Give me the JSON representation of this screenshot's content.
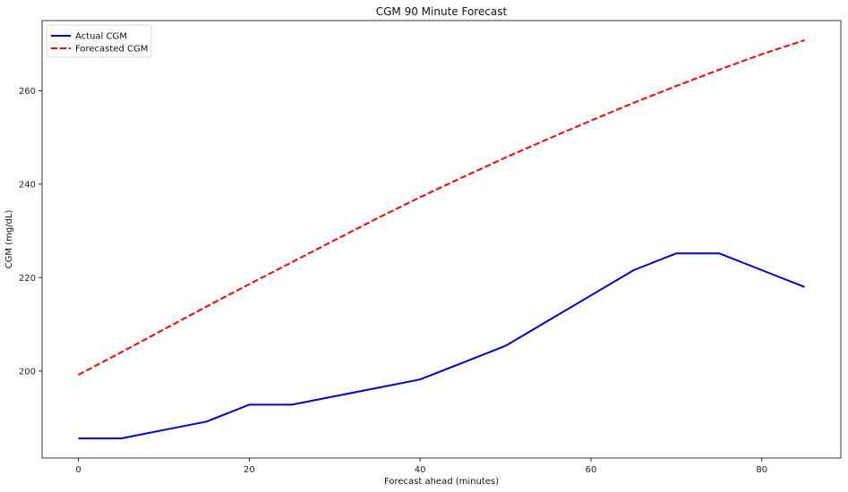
{
  "chart_data": {
    "type": "line",
    "title": "CGM 90 Minute Forecast",
    "xlabel": "Forecast ahead (minutes)",
    "ylabel": "CGM (mg/dL)",
    "xlim": [
      -4.25,
      89.25
    ],
    "ylim": [
      181.4,
      275.0
    ],
    "xticks": [
      0,
      20,
      40,
      60,
      80
    ],
    "yticks": [
      200,
      220,
      240,
      260
    ],
    "grid": false,
    "legend_position": "top-left",
    "series": [
      {
        "name": "Actual CGM",
        "color": "#0000cc",
        "style": "solid",
        "x": [
          0,
          5,
          10,
          15,
          20,
          25,
          30,
          35,
          40,
          45,
          50,
          55,
          60,
          65,
          70,
          75,
          80,
          85
        ],
        "values": [
          185.6,
          185.6,
          187.4,
          189.2,
          192.8,
          192.8,
          194.6,
          196.4,
          198.2,
          201.8,
          205.4,
          210.8,
          216.2,
          221.6,
          225.2,
          225.2,
          221.6,
          218.0
        ]
      },
      {
        "name": "Forecasted CGM",
        "color": "#ff0000",
        "style": "dashed",
        "x": [
          0,
          5,
          10,
          15,
          20,
          25,
          30,
          35,
          40,
          45,
          50,
          55,
          60,
          65,
          70,
          75,
          80,
          85
        ],
        "values": [
          199.2,
          204.0,
          208.9,
          213.8,
          218.6,
          223.3,
          228.0,
          232.7,
          237.2,
          241.5,
          245.7,
          249.7,
          253.6,
          257.4,
          261.0,
          264.5,
          267.8,
          270.8
        ]
      }
    ]
  }
}
